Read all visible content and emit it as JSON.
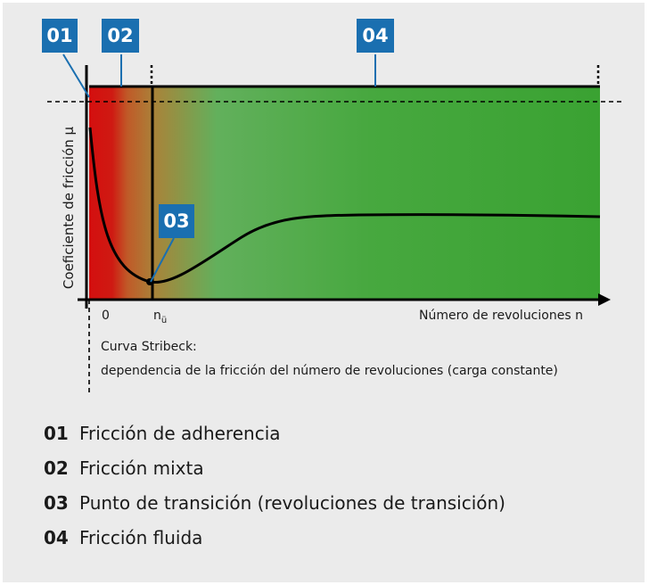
{
  "diagram": {
    "y_axis_label": "Coeficiente de fricción μ",
    "x_axis_label": "Número de revoluciones n",
    "x_tick_zero": "0",
    "x_tick_transition": "n",
    "x_tick_transition_sub": "ü",
    "caption_title": "Curva Stribeck:",
    "caption_text": "dependencia de la fricción del número de revoluciones (carga constante)"
  },
  "callouts": [
    {
      "id": "01"
    },
    {
      "id": "02"
    },
    {
      "id": "03"
    },
    {
      "id": "04"
    }
  ],
  "legend": [
    {
      "num": "01",
      "text": "Fricción de adherencia"
    },
    {
      "num": "02",
      "text": "Fricción mixta"
    },
    {
      "num": "03",
      "text": "Punto de transición (revoluciones de transición)"
    },
    {
      "num": "04",
      "text": "Fricción fluida"
    }
  ],
  "colors": {
    "adhesion_zone": "#d40f0f",
    "mixed_zone": "#b77d35",
    "fluid_zone": "#3da535",
    "callout_bg": "#1a6fb0",
    "panel_bg": "#ebebeb"
  }
}
